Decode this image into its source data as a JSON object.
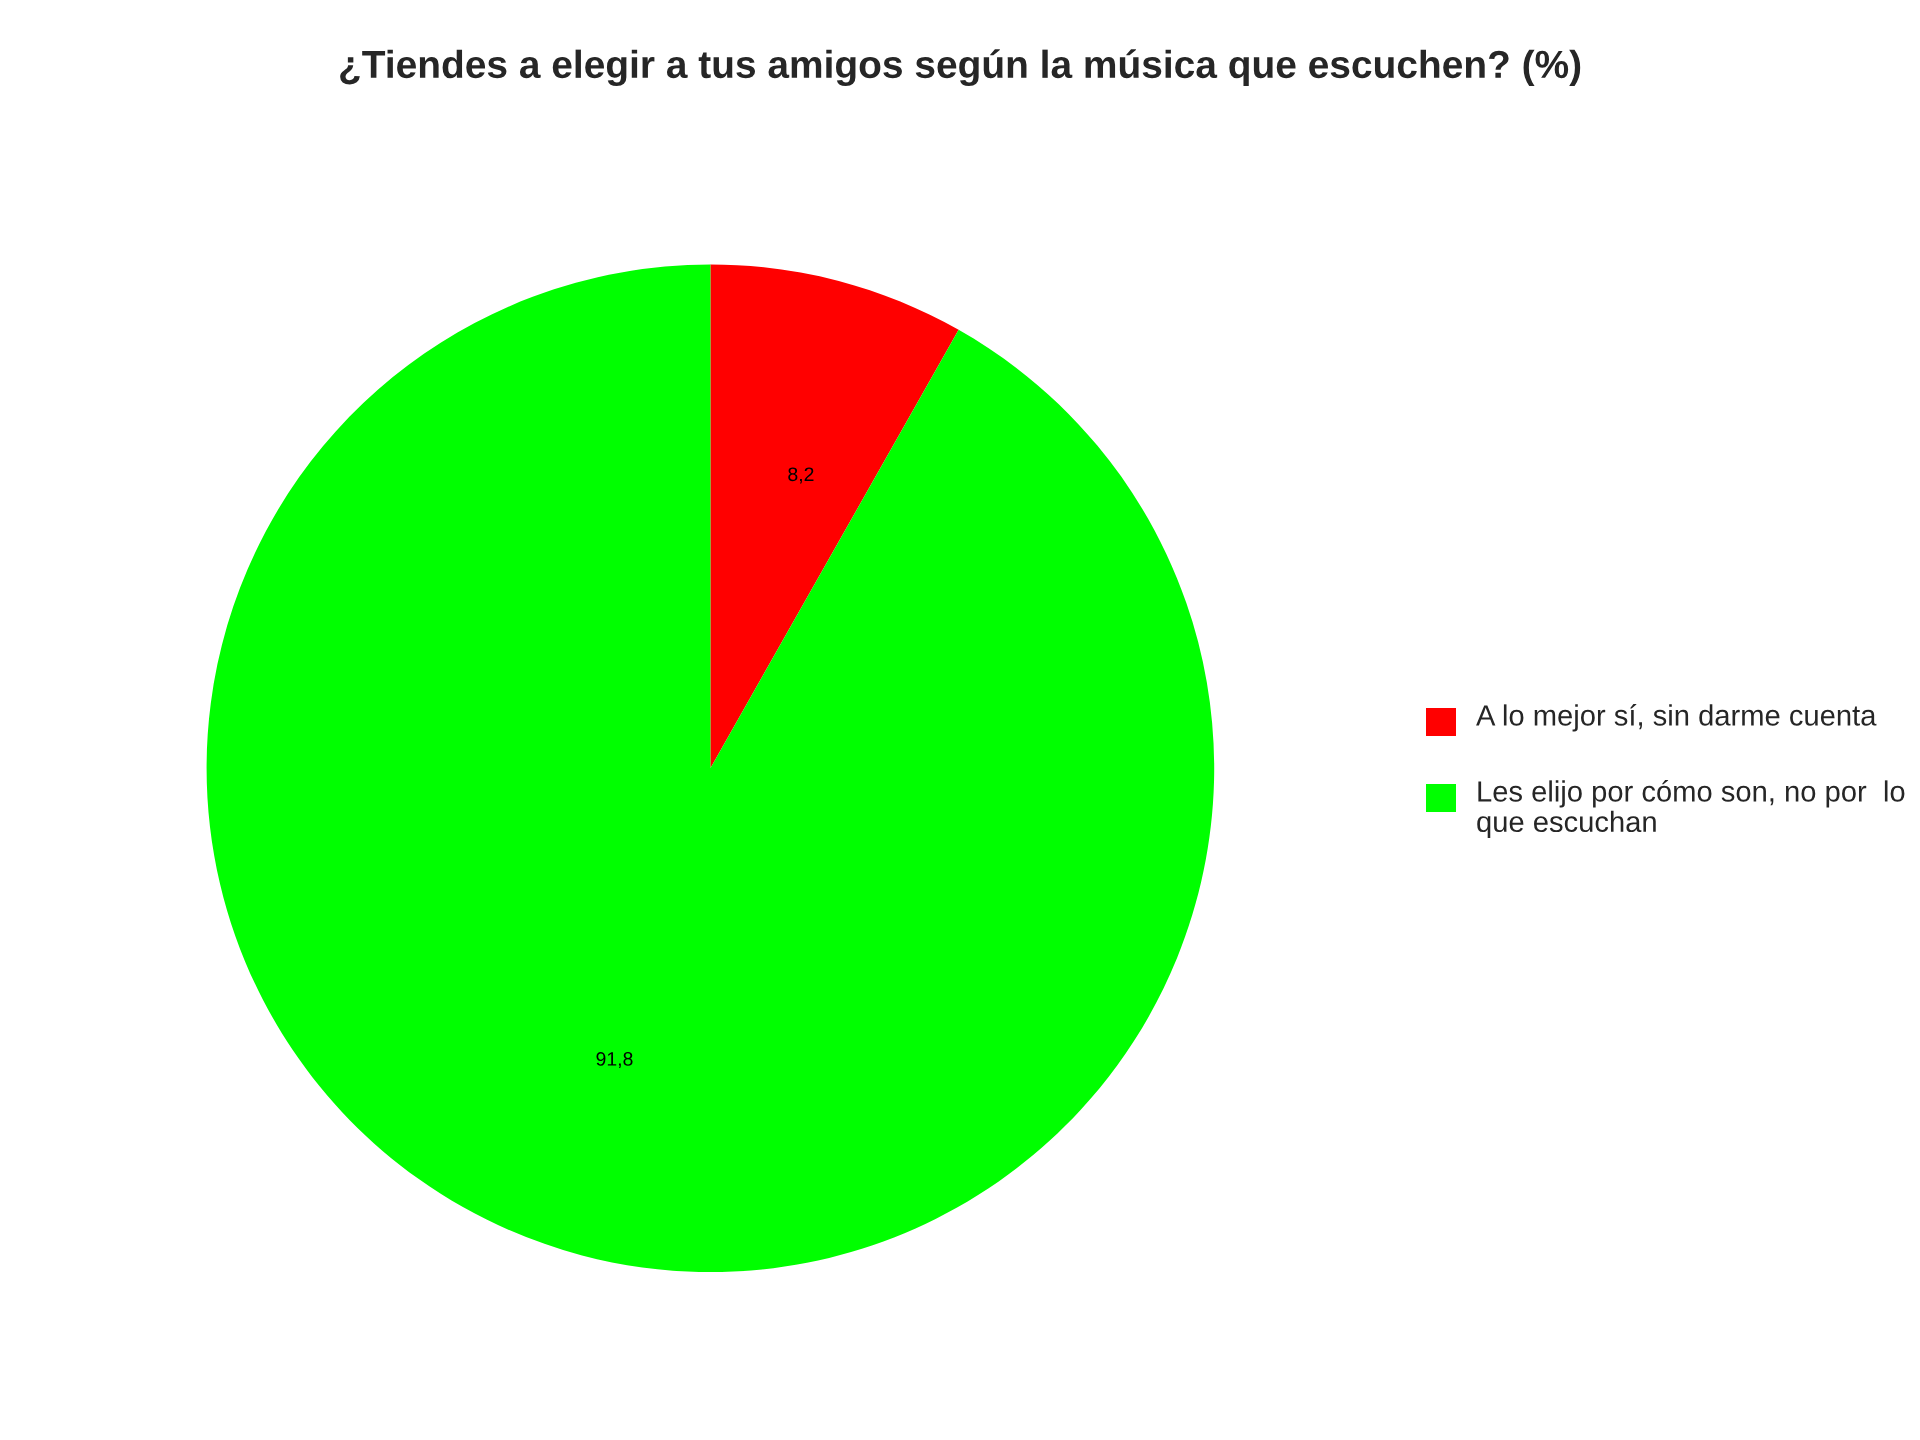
{
  "chart_data": {
    "type": "pie",
    "title": "¿Tiendes a elegir a tus amigos según la música que escuchen? (%)",
    "categories": [
      "A lo mejor sí, sin darme cuenta",
      "Les elijo por cómo son, no por  lo que escuchan"
    ],
    "values": [
      8.2,
      91.8
    ],
    "colors": [
      "#ff0000",
      "#00ff00"
    ],
    "value_labels": [
      "8,2",
      "91,8"
    ],
    "legend": "right"
  }
}
